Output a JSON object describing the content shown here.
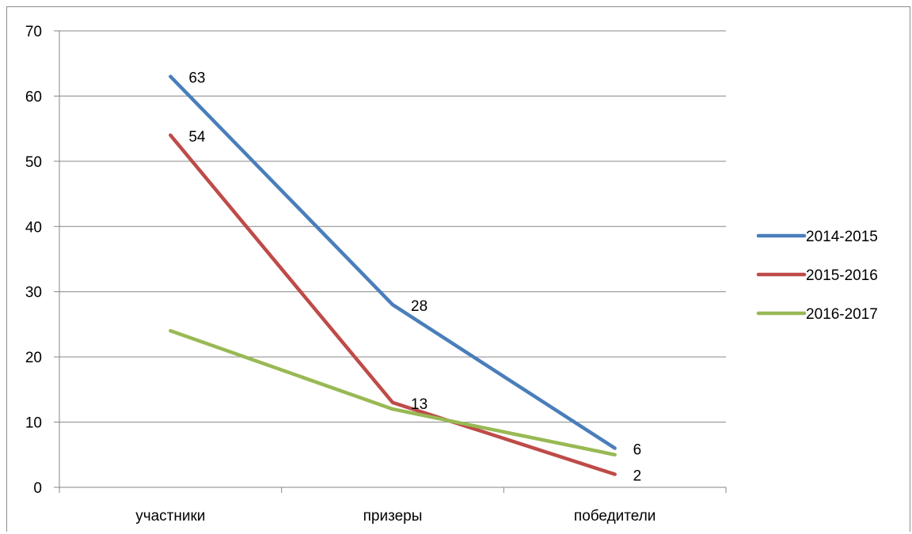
{
  "chart_data": {
    "type": "line",
    "categories": [
      "участники",
      "призеры",
      "победители"
    ],
    "ylim": [
      0,
      70
    ],
    "yticks": [
      0,
      10,
      20,
      30,
      40,
      50,
      60,
      70
    ],
    "grid": true,
    "legend_position": "right",
    "series": [
      {
        "name": "2014-2015",
        "color": "#4A7EBB",
        "values": [
          63,
          28,
          6
        ],
        "labels": [
          "63",
          "28",
          "6"
        ]
      },
      {
        "name": "2015-2016",
        "color": "#BE4B48",
        "values": [
          54,
          13,
          2
        ],
        "labels": [
          "54",
          "13",
          "2"
        ]
      },
      {
        "name": "2016-2017",
        "color": "#98B954",
        "values": [
          24,
          12,
          5
        ],
        "labels": [
          "",
          "",
          ""
        ]
      }
    ]
  }
}
